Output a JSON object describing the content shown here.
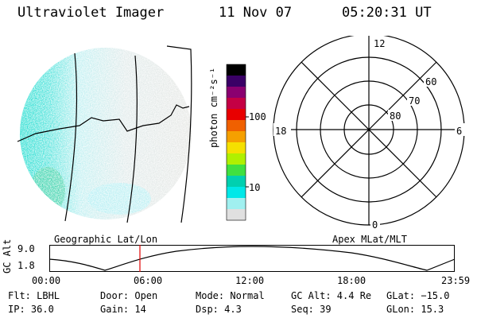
{
  "header": {
    "instrument": "Ultraviolet Imager",
    "date": "11 Nov 07",
    "time": "05:20:31 UT"
  },
  "colorbar": {
    "label": "photon cm⁻²s⁻¹",
    "tick_100": "100",
    "tick_10": "10",
    "colors": [
      "#000000",
      "#3a0066",
      "#8a0070",
      "#c40044",
      "#e80000",
      "#f06000",
      "#f5a000",
      "#f5e000",
      "#b0f000",
      "#40e040",
      "#00d0b0",
      "#00e8e8",
      "#a0f0f0",
      "#e0e0e0"
    ]
  },
  "polar": {
    "label_12": "12",
    "label_6": "6",
    "label_18": "18",
    "label_0": "0",
    "label_60": "60",
    "label_70": "70",
    "label_80": "80"
  },
  "labels": {
    "geographic": "Geographic Lat/Lon",
    "apex": "Apex MLat/MLT",
    "gc_alt_axis": "GC Alt",
    "gc_max": "9.0",
    "gc_min": "1.8"
  },
  "timeline": {
    "ticks": [
      "00:00",
      "06:00",
      "12:00",
      "18:00",
      "23:59"
    ],
    "current_fraction": 0.222
  },
  "footer": {
    "filter": "Flt: LBHL",
    "ip": "IP: 36.0",
    "door": "Door: Open",
    "gain": "Gain: 14",
    "mode": "Mode: Normal",
    "dsp": "Dsp:    4.3",
    "gc_alt": "GC Alt: 4.4 Re",
    "seq": "Seq: 39",
    "glat": "GLat: −15.0",
    "glon": "GLon:  15.3"
  }
}
